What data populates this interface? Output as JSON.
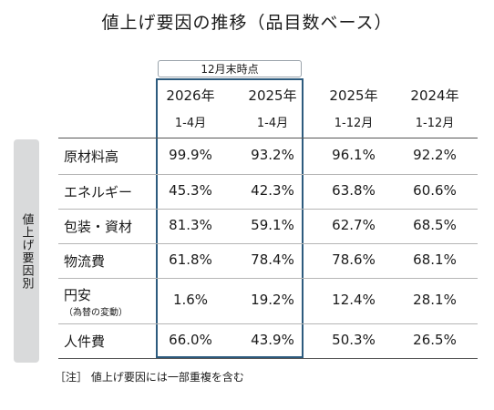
{
  "title": "値上げ要因の推移（品目数ベース）",
  "side_label": "値上げ要因別",
  "period_tag": "12月末時点",
  "columns": [
    {
      "year": "2026年",
      "range": "1-4月"
    },
    {
      "year": "2025年",
      "range": "1-4月"
    },
    {
      "year": "2025年",
      "range": "1-12月"
    },
    {
      "year": "2024年",
      "range": "1-12月"
    }
  ],
  "rows": [
    {
      "label": "原材料高",
      "sublabel": "",
      "values": [
        "99.9%",
        "93.2%",
        "96.1%",
        "92.2%"
      ]
    },
    {
      "label": "エネルギー",
      "sublabel": "",
      "values": [
        "45.3%",
        "42.3%",
        "63.8%",
        "60.6%"
      ]
    },
    {
      "label": "包装・資材",
      "sublabel": "",
      "values": [
        "81.3%",
        "59.1%",
        "62.7%",
        "68.5%"
      ]
    },
    {
      "label": "物流費",
      "sublabel": "",
      "values": [
        "61.8%",
        "78.4%",
        "78.6%",
        "68.1%"
      ]
    },
    {
      "label": "円安",
      "sublabel": "（為替の変動）",
      "values": [
        "1.6%",
        "19.2%",
        "12.4%",
        "28.1%"
      ]
    },
    {
      "label": "人件費",
      "sublabel": "",
      "values": [
        "66.0%",
        "43.9%",
        "50.3%",
        "26.5%"
      ]
    }
  ],
  "note": "［注］ 値上げ要因には一部重複を含む",
  "colors": {
    "highlight_border": "#2d5b7e",
    "side_label_bg": "#d9dadb",
    "rule_line": "#b5b5b5"
  }
}
